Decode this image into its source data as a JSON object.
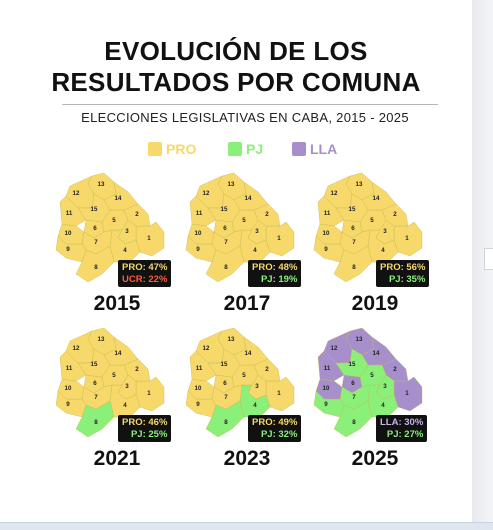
{
  "title": {
    "line1": "EVOLUCIÓN DE LOS",
    "line2": "RESULTADOS POR COMUNA"
  },
  "subtitle": "ELECCIONES LEGISLATIVAS EN CABA, 2015 - 2025",
  "legend": [
    {
      "label": "PRO",
      "color": "#f6d96a"
    },
    {
      "label": "PJ",
      "color": "#8af07a"
    },
    {
      "label": "LLA",
      "color": "#a78fcc"
    }
  ],
  "colors": {
    "PRO": "#f6d96a",
    "PJ": "#8af07a",
    "LLA": "#a78fcc",
    "UCR": "#ff5a3c",
    "badge_bg": "#111111"
  },
  "comuna_labels": [
    "1",
    "2",
    "3",
    "4",
    "5",
    "6",
    "7",
    "8",
    "9",
    "10",
    "11",
    "12",
    "13",
    "14",
    "15"
  ],
  "maps": [
    {
      "year": "2015",
      "badge": [
        {
          "party": "PRO",
          "pct": "47%",
          "text": "PRO: 47%"
        },
        {
          "party": "UCR",
          "pct": "22%",
          "text": "UCR: 22%"
        }
      ],
      "comunas": {
        "1": "PRO",
        "2": "PRO",
        "3": "PRO",
        "4": "PRO",
        "5": "PRO",
        "6": "PRO",
        "7": "PRO",
        "8": "PRO",
        "9": "PRO",
        "10": "PRO",
        "11": "PRO",
        "12": "PRO",
        "13": "PRO",
        "14": "PRO",
        "15": "PRO"
      }
    },
    {
      "year": "2017",
      "badge": [
        {
          "party": "PRO",
          "pct": "48%",
          "text": "PRO: 48%"
        },
        {
          "party": "PJ",
          "pct": "19%",
          "text": "PJ: 19%"
        }
      ],
      "comunas": {
        "1": "PRO",
        "2": "PRO",
        "3": "PRO",
        "4": "PRO",
        "5": "PRO",
        "6": "PRO",
        "7": "PRO",
        "8": "PRO",
        "9": "PRO",
        "10": "PRO",
        "11": "PRO",
        "12": "PRO",
        "13": "PRO",
        "14": "PRO",
        "15": "PRO"
      }
    },
    {
      "year": "2019",
      "badge": [
        {
          "party": "PRO",
          "pct": "56%",
          "text": "PRO: 56%"
        },
        {
          "party": "PJ",
          "pct": "35%",
          "text": "PJ: 35%"
        }
      ],
      "comunas": {
        "1": "PRO",
        "2": "PRO",
        "3": "PRO",
        "4": "PRO",
        "5": "PRO",
        "6": "PRO",
        "7": "PRO",
        "8": "PRO",
        "9": "PRO",
        "10": "PRO",
        "11": "PRO",
        "12": "PRO",
        "13": "PRO",
        "14": "PRO",
        "15": "PRO"
      }
    },
    {
      "year": "2021",
      "badge": [
        {
          "party": "PRO",
          "pct": "46%",
          "text": "PRO: 46%"
        },
        {
          "party": "PJ",
          "pct": "25%",
          "text": "PJ: 25%"
        }
      ],
      "comunas": {
        "1": "PRO",
        "2": "PRO",
        "3": "PRO",
        "4": "PRO",
        "5": "PRO",
        "6": "PRO",
        "7": "PRO",
        "8": "PJ",
        "9": "PRO",
        "10": "PRO",
        "11": "PRO",
        "12": "PRO",
        "13": "PRO",
        "14": "PRO",
        "15": "PRO"
      }
    },
    {
      "year": "2023",
      "badge": [
        {
          "party": "PRO",
          "pct": "49%",
          "text": "PRO: 49%"
        },
        {
          "party": "PJ",
          "pct": "32%",
          "text": "PJ: 32%"
        }
      ],
      "comunas": {
        "1": "PRO",
        "2": "PRO",
        "3": "PRO",
        "4": "PJ",
        "5": "PRO",
        "6": "PRO",
        "7": "PRO",
        "8": "PJ",
        "9": "PRO",
        "10": "PRO",
        "11": "PRO",
        "12": "PRO",
        "13": "PRO",
        "14": "PRO",
        "15": "PRO"
      }
    },
    {
      "year": "2025",
      "badge": [
        {
          "party": "LLA",
          "pct": "30%",
          "text": "LLA: 30%"
        },
        {
          "party": "PJ",
          "pct": "27%",
          "text": "PJ: 27%"
        }
      ],
      "comunas": {
        "1": "LLA",
        "2": "LLA",
        "3": "PJ",
        "4": "PJ",
        "5": "PJ",
        "6": "LLA",
        "7": "PJ",
        "8": "PJ",
        "9": "PJ",
        "10": "LLA",
        "11": "LLA",
        "12": "LLA",
        "13": "LLA",
        "14": "LLA",
        "15": "PJ"
      }
    }
  ]
}
